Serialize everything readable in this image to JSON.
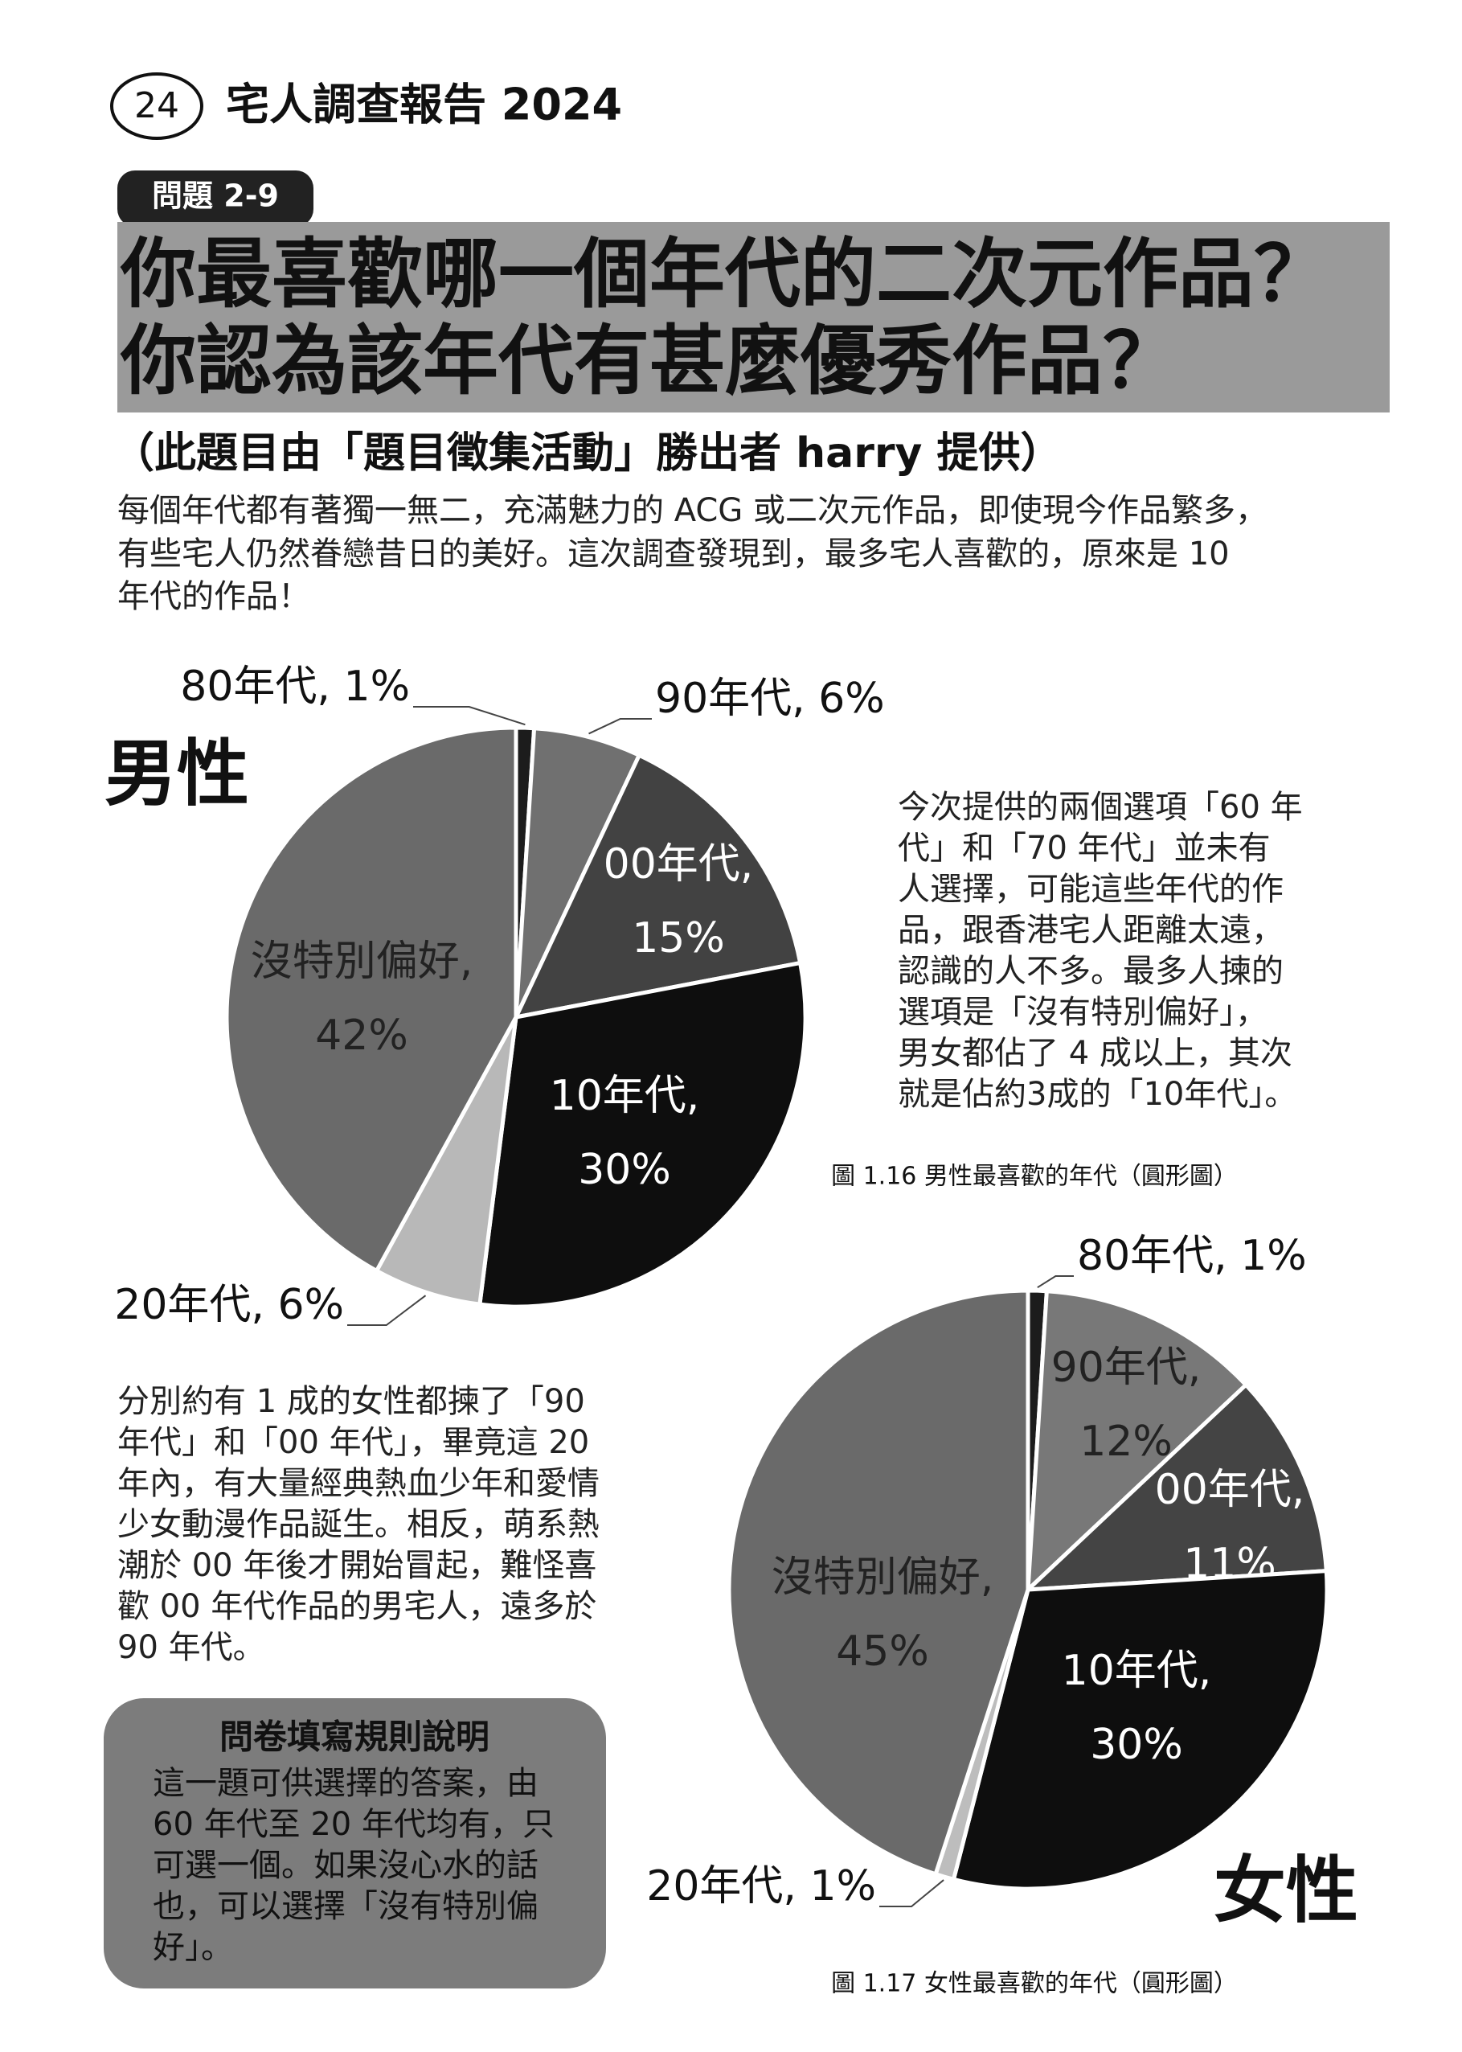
{
  "header": {
    "page_number": "24",
    "report_title": "宅人調查報告 2024"
  },
  "question": {
    "tag": "問題 2-9",
    "title_lines": [
      "你最喜歡哪一個年代的二次元作品？",
      "你認為該年代有甚麼優秀作品？"
    ],
    "subtitle": "（此題目由「題目徵集活動」勝出者 harry 提供）"
  },
  "intro": [
    "每個年代都有著獨一無二，充滿魅力的 ACG 或二次元作品，即使現今作品繁多，",
    "有些宅人仍然眷戀昔日的美好。這次調查發現到，最多宅人喜歡的，原來是 10",
    "年代的作品！"
  ],
  "male_label": "男性",
  "female_label": "女性",
  "male_note": [
    "今次提供的兩個選項「60 年",
    "代」和「70 年代」並未有",
    "人選擇，可能這些年代的作",
    "品，跟香港宅人距離太遠，",
    "認識的人不多。最多人揀的",
    "選項是「沒有特別偏好」，",
    "男女都佔了 4 成以上，其次",
    "就是佔約3成的「10年代」。"
  ],
  "female_note": [
    "分別約有 1 成的女性都揀了「90",
    "年代」和「00 年代」，畢竟這 20",
    "年內，有大量經典熱血少年和愛情",
    "少女動漫作品誕生。相反，萌系熱",
    "潮於 00 年後才開始冒起，難怪喜",
    "歡 00 年代作品的男宅人，遠多於",
    "90 年代。"
  ],
  "rules": {
    "title": "問卷填寫規則說明",
    "lines": [
      "這一題可供選擇的答案，由",
      "60 年代至 20 年代均有，只",
      "可選一個。如果沒心水的話",
      "也，可以選擇「沒有特別偏",
      "好」。"
    ]
  },
  "chart_data": [
    {
      "type": "pie",
      "caption": "圖 1.16 男性最喜歡的年代（圓形圖）",
      "values": [
        1,
        6,
        15,
        30,
        6,
        42
      ],
      "value_labels": [
        "80年代, 1%",
        "90年代, 6%",
        "00年代,\n15%",
        "10年代,\n30%",
        "20年代, 6%",
        "沒特別偏好,\n42%"
      ],
      "colors": [
        "#1c1c1c",
        "#707070",
        "#424242",
        "#0e0e0e",
        "#b8b8b8",
        "#6a6a6a"
      ]
    },
    {
      "type": "pie",
      "caption": "圖 1.17 女性最喜歡的年代（圓形圖）",
      "values": [
        1,
        12,
        11,
        30,
        1,
        45
      ],
      "value_labels": [
        "80年代, 1%",
        "90年代,\n12%",
        "00年代,\n11%",
        "10年代,\n30%",
        "20年代, 1%",
        "沒特別偏好,\n45%"
      ],
      "colors": [
        "#1c1c1c",
        "#787878",
        "#444444",
        "#0e0e0e",
        "#bdbdbd",
        "#6a6a6a"
      ]
    }
  ]
}
